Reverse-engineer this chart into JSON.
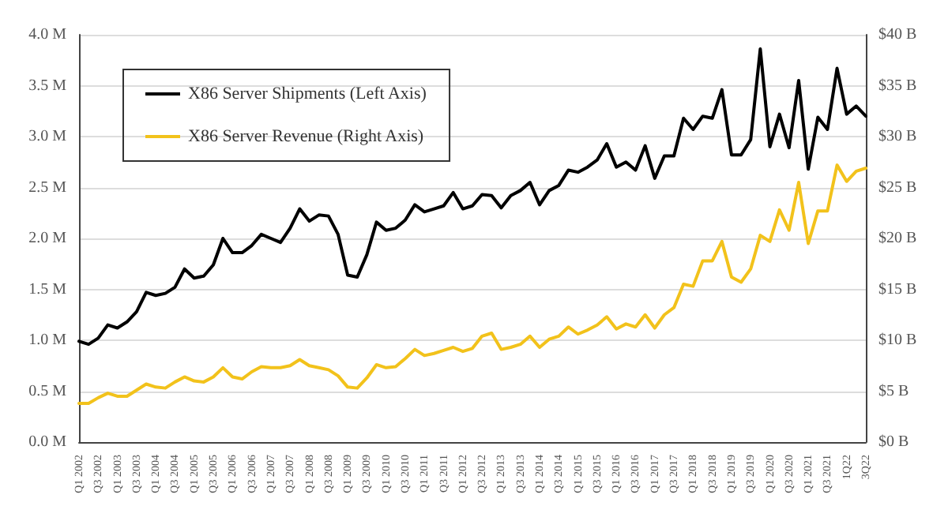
{
  "chart_data": {
    "type": "line",
    "categories": [
      "Q1 2002",
      null,
      "Q3 2002",
      null,
      "Q1 2003",
      null,
      "Q3 2003",
      null,
      "Q1 2004",
      null,
      "Q3 2004",
      null,
      "Q1 2005",
      null,
      "Q3 2005",
      null,
      "Q1 2006",
      null,
      "Q3 2006",
      null,
      "Q1 2007",
      null,
      "Q3 2007",
      null,
      "Q1 2008",
      null,
      "Q3 2008",
      null,
      "Q1 2009",
      null,
      "Q3 2009",
      null,
      "Q1 2010",
      null,
      "Q3 2010",
      null,
      "Q1 2011",
      null,
      "Q3 2011",
      null,
      "Q1 2012",
      null,
      "Q3 2012",
      null,
      "Q1 2013",
      null,
      "Q3 2013",
      null,
      "Q1 2014",
      null,
      "Q3 2014",
      null,
      "Q1 2015",
      null,
      "Q3 2015",
      null,
      "Q1 2016",
      null,
      "Q3 2016",
      null,
      "Q1 2017",
      null,
      "Q3 2017",
      null,
      "Q1 2018",
      null,
      "Q3 2018",
      null,
      "Q1 2019",
      null,
      "Q3 2019",
      null,
      "Q1 2020",
      null,
      "Q3 2020",
      null,
      "Q1 2021",
      null,
      "Q3 2021",
      null,
      "1Q22",
      null,
      "3Q22"
    ],
    "series": [
      {
        "name": "X86 Server Shipments (Left Axis)",
        "color": "#000000",
        "values": [
          0.99,
          0.96,
          1.02,
          1.15,
          1.12,
          1.18,
          1.28,
          1.47,
          1.44,
          1.46,
          1.52,
          1.7,
          1.61,
          1.63,
          1.74,
          2.0,
          1.86,
          1.86,
          1.93,
          2.04,
          2.0,
          1.96,
          2.1,
          2.29,
          2.17,
          2.23,
          2.22,
          2.04,
          1.64,
          1.62,
          1.84,
          2.16,
          2.08,
          2.1,
          2.18,
          2.33,
          2.26,
          2.29,
          2.32,
          2.45,
          2.29,
          2.32,
          2.43,
          2.42,
          2.3,
          2.42,
          2.47,
          2.55,
          2.33,
          2.47,
          2.52,
          2.67,
          2.65,
          2.7,
          2.77,
          2.93,
          2.7,
          2.75,
          2.67,
          2.91,
          2.59,
          2.81,
          2.81,
          3.18,
          3.07,
          3.2,
          3.18,
          3.46,
          2.82,
          2.82,
          2.97,
          3.86,
          2.9,
          3.22,
          2.89,
          3.55,
          2.68,
          3.19,
          3.07,
          3.67,
          3.22,
          3.3,
          3.2
        ]
      },
      {
        "name": "X86 Server Revenue (Right Axis)",
        "color": "#f2c21b",
        "axis": "y2",
        "values": [
          3.8,
          3.8,
          4.35,
          4.8,
          4.5,
          4.5,
          5.1,
          5.7,
          5.4,
          5.3,
          5.9,
          6.4,
          6.0,
          5.9,
          6.4,
          7.3,
          6.4,
          6.2,
          6.9,
          7.4,
          7.3,
          7.3,
          7.5,
          8.1,
          7.5,
          7.3,
          7.1,
          6.5,
          5.4,
          5.3,
          6.3,
          7.6,
          7.3,
          7.4,
          8.2,
          9.1,
          8.5,
          8.7,
          9.0,
          9.3,
          8.9,
          9.2,
          10.4,
          10.7,
          9.1,
          9.3,
          9.6,
          10.4,
          9.3,
          10.1,
          10.4,
          11.3,
          10.6,
          11.0,
          11.5,
          12.3,
          11.1,
          11.6,
          11.3,
          12.5,
          11.2,
          12.5,
          13.2,
          15.5,
          15.3,
          17.8,
          17.8,
          19.7,
          16.2,
          15.7,
          17.0,
          20.3,
          19.7,
          22.8,
          20.8,
          25.5,
          19.5,
          22.7,
          22.7,
          27.2,
          25.6,
          26.6,
          26.9
        ]
      }
    ],
    "ylim": [
      0,
      4
    ],
    "yticks": [
      {
        "value": 0,
        "label": "0.0 M"
      },
      {
        "value": 0.5,
        "label": "0.5 M"
      },
      {
        "value": 1,
        "label": "1.0 M"
      },
      {
        "value": 1.5,
        "label": "1.5 M"
      },
      {
        "value": 2,
        "label": "2.0 M"
      },
      {
        "value": 2.5,
        "label": "2.5 M"
      },
      {
        "value": 3,
        "label": "3.0 M"
      },
      {
        "value": 3.5,
        "label": "3.5 M"
      },
      {
        "value": 4,
        "label": "4.0 M"
      }
    ],
    "y2lim": [
      0,
      40
    ],
    "y2ticks": [
      {
        "value": 0,
        "label": "$0 B"
      },
      {
        "value": 5,
        "label": "$5 B"
      },
      {
        "value": 10,
        "label": "$10 B"
      },
      {
        "value": 15,
        "label": "$15 B"
      },
      {
        "value": 20,
        "label": "$20 B"
      },
      {
        "value": 25,
        "label": "$25 B"
      },
      {
        "value": 30,
        "label": "$30 B"
      },
      {
        "value": 35,
        "label": "$35 B"
      },
      {
        "value": 40,
        "label": "$40 B"
      }
    ],
    "grid": "y",
    "legend": "top left",
    "marker": "none",
    "line_style": "solid"
  }
}
